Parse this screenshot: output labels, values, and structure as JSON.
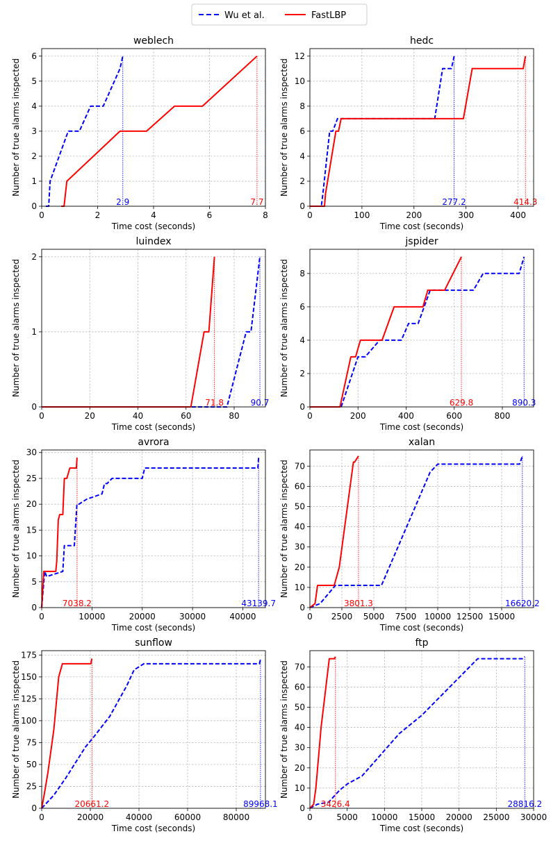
{
  "legend": {
    "entries": [
      {
        "label": "Wu et al.",
        "color": "#0000ff",
        "dash": true
      },
      {
        "label": "FastLBP",
        "color": "#ff0000",
        "dash": false
      }
    ]
  },
  "colors": {
    "wu": "#0000ff",
    "fast": "#ff0000",
    "grid": "#b0b0b0"
  },
  "chart_data": [
    {
      "title": "weblech",
      "type": "line",
      "xlabel": "Time cost (seconds)",
      "ylabel": "Number of true alarms inspected",
      "xlim": [
        0,
        8
      ],
      "ylim": [
        0,
        6.3
      ],
      "xticks": [
        0,
        2,
        4,
        6,
        8
      ],
      "yticks": [
        0,
        1,
        2,
        3,
        4,
        5,
        6
      ],
      "series": [
        {
          "name": "Wu et al.",
          "x": [
            0.15,
            0.25,
            0.3,
            0.95,
            1.35,
            1.75,
            1.85,
            2.15,
            2.2,
            2.8,
            2.9
          ],
          "y": [
            0,
            0,
            1,
            3,
            3,
            4,
            4,
            4,
            4,
            5.5,
            6
          ]
        },
        {
          "name": "FastLBP",
          "x": [
            0.7,
            0.8,
            0.9,
            2.8,
            3.75,
            4.75,
            5.75,
            7.7
          ],
          "y": [
            0,
            0,
            1,
            3,
            3,
            4,
            4,
            6
          ]
        }
      ],
      "annotations": [
        {
          "text": "2.9",
          "x": 2.9,
          "series": "Wu et al."
        },
        {
          "text": "7.7",
          "x": 7.7,
          "series": "FastLBP"
        }
      ]
    },
    {
      "title": "hedc",
      "type": "line",
      "xlabel": "Time cost (seconds)",
      "ylabel": "Number of true alarms inspected",
      "xlim": [
        0,
        430
      ],
      "ylim": [
        0,
        12.6
      ],
      "xticks": [
        0,
        100,
        200,
        300,
        400
      ],
      "yticks": [
        0,
        2,
        4,
        6,
        8,
        10,
        12
      ],
      "series": [
        {
          "name": "Wu et al.",
          "x": [
            0,
            22,
            25,
            38,
            44,
            53,
            240,
            255,
            270,
            272,
            277.2
          ],
          "y": [
            0,
            0,
            1,
            6,
            6,
            7,
            7,
            11,
            11,
            11,
            12
          ]
        },
        {
          "name": "FastLBP",
          "x": [
            0,
            28,
            30,
            50,
            55,
            60,
            295,
            312,
            410,
            414.3
          ],
          "y": [
            0,
            0,
            1,
            6,
            6,
            7,
            7,
            11,
            11,
            12
          ]
        }
      ],
      "annotations": [
        {
          "text": "277.2",
          "x": 277.2,
          "series": "Wu et al."
        },
        {
          "text": "414.3",
          "x": 414.3,
          "series": "FastLBP"
        }
      ]
    },
    {
      "title": "luindex",
      "type": "line",
      "xlabel": "Time cost (seconds)",
      "ylabel": "Number of true alarms inspected",
      "xlim": [
        0,
        93
      ],
      "ylim": [
        0,
        2.1
      ],
      "xticks": [
        0,
        20,
        40,
        60,
        80
      ],
      "yticks": [
        0,
        1,
        2
      ],
      "series": [
        {
          "name": "Wu et al.",
          "x": [
            0,
            77,
            85,
            87,
            90.7
          ],
          "y": [
            0,
            0,
            1,
            1,
            2
          ]
        },
        {
          "name": "FastLBP",
          "x": [
            0,
            62,
            67.5,
            69.5,
            71.8
          ],
          "y": [
            0,
            0,
            1,
            1,
            2
          ]
        }
      ],
      "annotations": [
        {
          "text": "71.8",
          "x": 71.8,
          "series": "FastLBP"
        },
        {
          "text": "90.7",
          "x": 90.7,
          "series": "Wu et al."
        }
      ]
    },
    {
      "title": "jspider",
      "type": "line",
      "xlabel": "Time cost (seconds)",
      "ylabel": "Number of true alarms inspected",
      "xlim": [
        0,
        930
      ],
      "ylim": [
        0,
        9.45
      ],
      "xticks": [
        0,
        200,
        400,
        600,
        800
      ],
      "yticks": [
        0,
        2,
        4,
        6,
        8
      ],
      "series": [
        {
          "name": "Wu et al.",
          "x": [
            0,
            130,
            200,
            230,
            290,
            380,
            410,
            450,
            500,
            680,
            720,
            870,
            890.3
          ],
          "y": [
            0,
            0,
            3,
            3,
            4,
            4,
            5,
            5,
            7,
            7,
            8,
            8,
            9
          ]
        },
        {
          "name": "FastLBP",
          "x": [
            0,
            125,
            170,
            190,
            210,
            300,
            350,
            470,
            490,
            560,
            629.8
          ],
          "y": [
            0,
            0,
            3,
            3,
            4,
            4,
            6,
            6,
            7,
            7,
            9
          ]
        }
      ],
      "annotations": [
        {
          "text": "629.8",
          "x": 629.8,
          "series": "FastLBP"
        },
        {
          "text": "890.3",
          "x": 890.3,
          "series": "Wu et al."
        }
      ]
    },
    {
      "title": "avrora",
      "type": "line",
      "xlabel": "Time cost (seconds)",
      "ylabel": "Number of true alarms inspected",
      "xlim": [
        0,
        44500
      ],
      "ylim": [
        0,
        30.5
      ],
      "xticks": [
        0,
        10000,
        20000,
        30000,
        40000
      ],
      "yticks": [
        0,
        5,
        10,
        15,
        20,
        25,
        30
      ],
      "series": [
        {
          "name": "Wu et al.",
          "x": [
            0,
            600,
            1000,
            4200,
            4500,
            6500,
            7000,
            7400,
            9000,
            12000,
            12500,
            13000,
            14000,
            20000,
            20500,
            43000,
            43139.7
          ],
          "y": [
            0,
            7,
            6,
            7,
            12,
            12,
            20,
            20,
            21,
            22,
            24,
            24,
            25,
            25,
            27,
            27,
            29
          ]
        },
        {
          "name": "FastLBP",
          "x": [
            0,
            400,
            2800,
            3000,
            3300,
            3600,
            4200,
            4500,
            5000,
            5600,
            6900,
            7038.2
          ],
          "y": [
            0,
            7,
            7,
            9,
            17,
            18,
            18,
            25,
            25,
            27,
            27,
            29
          ]
        }
      ],
      "annotations": [
        {
          "text": "7038.2",
          "x": 7038.2,
          "series": "FastLBP"
        },
        {
          "text": "43139.7",
          "x": 43139.7,
          "series": "Wu et al."
        }
      ]
    },
    {
      "title": "xalan",
      "type": "line",
      "xlabel": "Time cost (seconds)",
      "ylabel": "Number of true alarms inspected",
      "xlim": [
        0,
        17500
      ],
      "ylim": [
        0,
        78
      ],
      "xticks": [
        0,
        2500,
        5000,
        7500,
        10000,
        12500,
        15000
      ],
      "yticks": [
        0,
        10,
        20,
        30,
        40,
        50,
        60,
        70
      ],
      "series": [
        {
          "name": "Wu et al.",
          "x": [
            0,
            800,
            2000,
            5600,
            9400,
            10000,
            16400,
            16620.2
          ],
          "y": [
            0,
            2,
            11,
            11,
            67,
            71,
            71,
            75
          ]
        },
        {
          "name": "FastLBP",
          "x": [
            0,
            400,
            600,
            1900,
            2300,
            3400,
            3500,
            3801.3
          ],
          "y": [
            0,
            2,
            11,
            11,
            20,
            72,
            72,
            75
          ]
        }
      ],
      "annotations": [
        {
          "text": "3801.3",
          "x": 3801.3,
          "series": "FastLBP"
        },
        {
          "text": "16620.2",
          "x": 16620.2,
          "series": "Wu et al."
        }
      ]
    },
    {
      "title": "sunflow",
      "type": "line",
      "xlabel": "Time cost (seconds)",
      "ylabel": "Number of true alarms inspected",
      "xlim": [
        0,
        92000
      ],
      "ylim": [
        0,
        180
      ],
      "xticks": [
        0,
        20000,
        40000,
        60000,
        80000
      ],
      "yticks": [
        0,
        25,
        50,
        75,
        100,
        125,
        150,
        175
      ],
      "series": [
        {
          "name": "Wu et al.",
          "x": [
            0,
            5000,
            10000,
            18000,
            21000,
            28000,
            35000,
            38000,
            42000,
            89500,
            89968.1
          ],
          "y": [
            0,
            15,
            35,
            70,
            80,
            105,
            140,
            158,
            165,
            165,
            170
          ]
        },
        {
          "name": "FastLBP",
          "x": [
            0,
            1000,
            2500,
            5000,
            7000,
            8500,
            20200,
            20661.2
          ],
          "y": [
            0,
            15,
            40,
            90,
            150,
            165,
            165,
            171
          ]
        }
      ],
      "annotations": [
        {
          "text": "20661.2",
          "x": 20661.2,
          "series": "FastLBP"
        },
        {
          "text": "89968.1",
          "x": 89968.1,
          "series": "Wu et al."
        }
      ]
    },
    {
      "title": "ftp",
      "type": "line",
      "xlabel": "Time cost (seconds)",
      "ylabel": "Number of true alarms inspected",
      "xlim": [
        0,
        30000
      ],
      "ylim": [
        0,
        78
      ],
      "xticks": [
        0,
        5000,
        10000,
        15000,
        20000,
        25000,
        30000
      ],
      "yticks": [
        0,
        10,
        20,
        30,
        40,
        50,
        60,
        70
      ],
      "series": [
        {
          "name": "Wu et al.",
          "x": [
            0,
            1000,
            2500,
            4000,
            5000,
            7000,
            12000,
            15000,
            22500,
            28500,
            28816.2
          ],
          "y": [
            0,
            2,
            3,
            9,
            12,
            16,
            37,
            46,
            74,
            74,
            75
          ]
        },
        {
          "name": "FastLBP",
          "x": [
            0,
            500,
            800,
            1500,
            2600,
            3000,
            3300,
            3426.4
          ],
          "y": [
            0,
            2,
            10,
            40,
            74,
            74,
            74,
            75
          ]
        }
      ],
      "annotations": [
        {
          "text": "3426.4",
          "x": 3426.4,
          "series": "FastLBP"
        },
        {
          "text": "28816.2",
          "x": 28816.2,
          "series": "Wu et al."
        }
      ]
    }
  ]
}
